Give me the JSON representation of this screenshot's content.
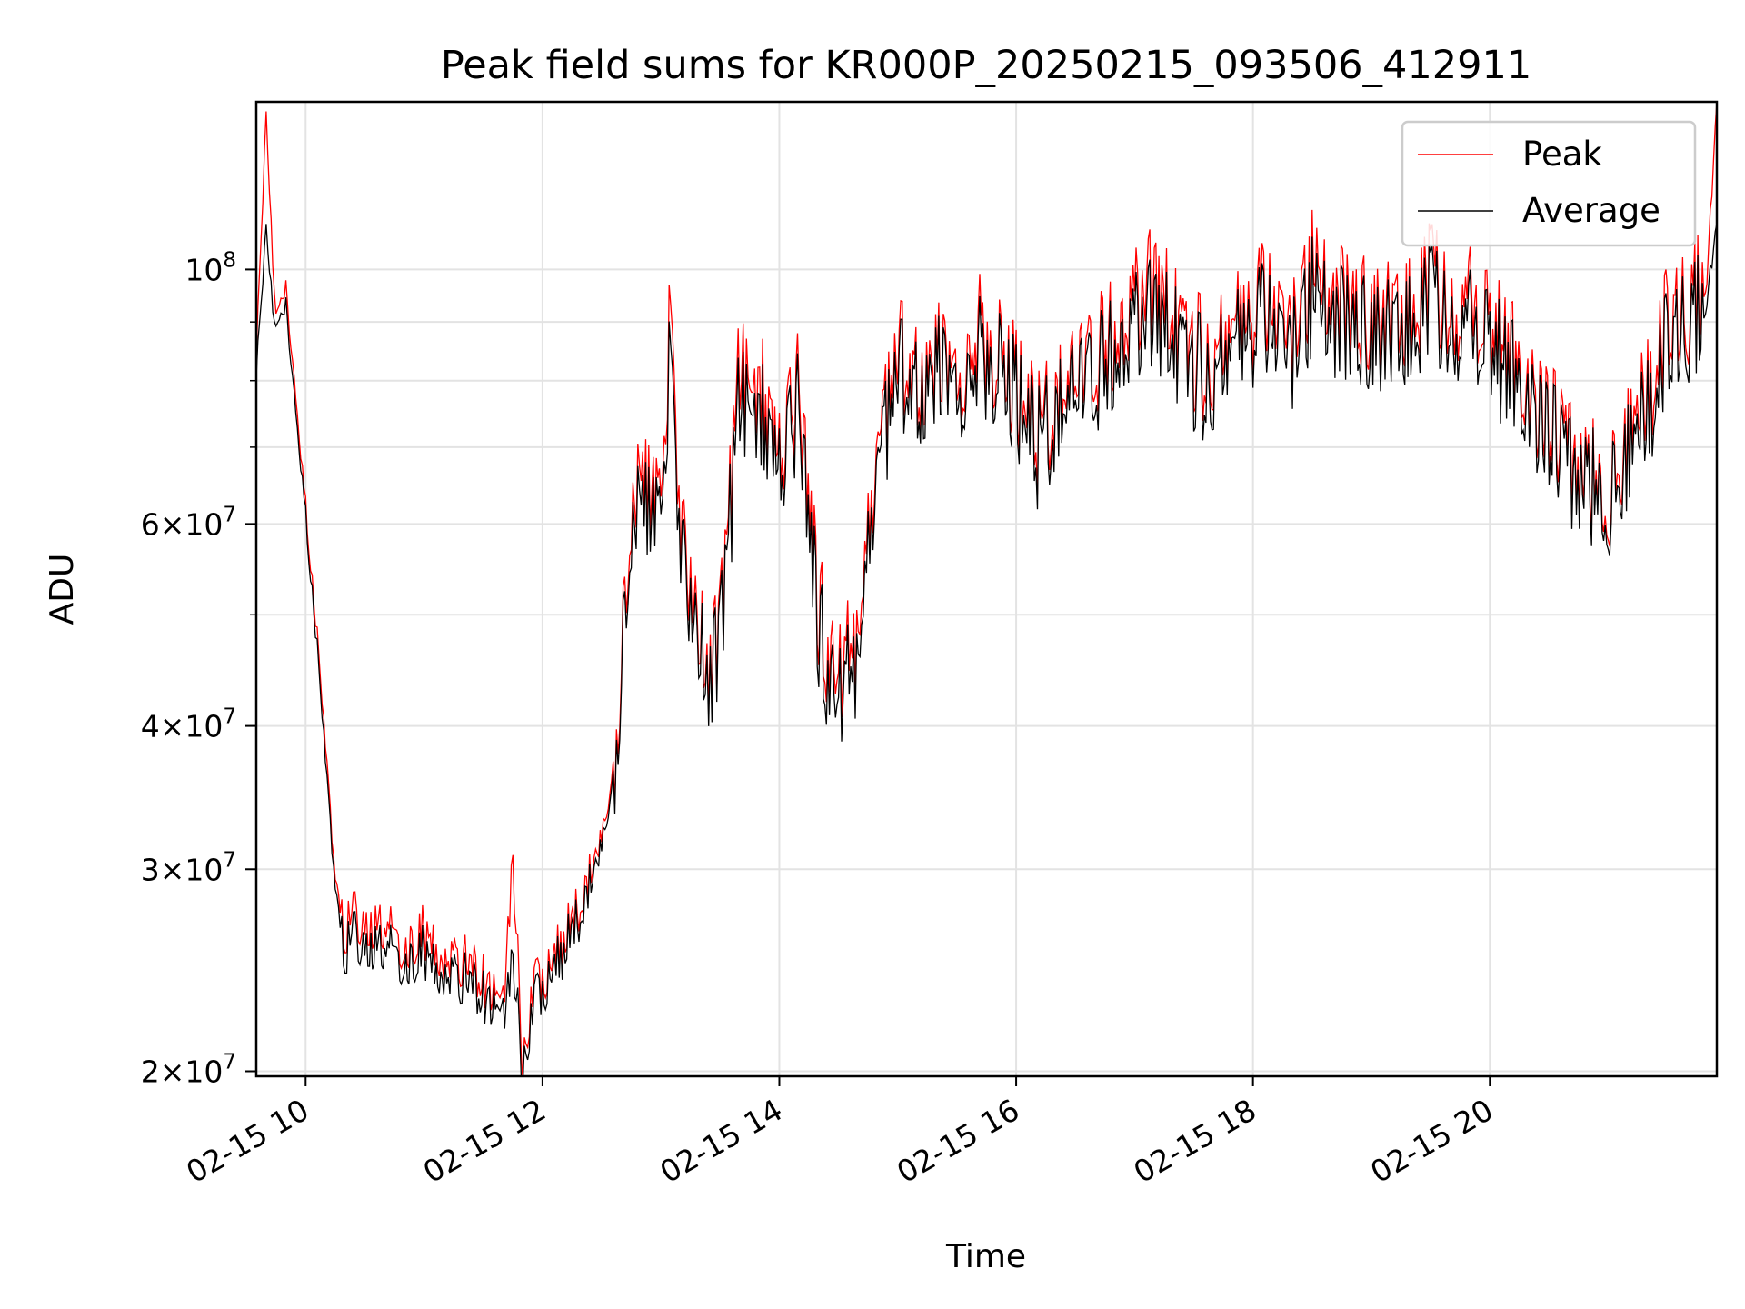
{
  "chart_data": {
    "type": "line",
    "title": "Peak field sums for KR000P_20250215_093506_412911",
    "xlabel": "Time",
    "ylabel": "ADU",
    "yscale": "log",
    "ylim": [
      19800000,
      140000000
    ],
    "xlim": [
      "02-15 09:35",
      "02-15 21:55"
    ],
    "grid": true,
    "legend_position": "top-right",
    "x_ticks": [
      "02-15 10",
      "02-15 12",
      "02-15 14",
      "02-15 16",
      "02-15 18",
      "02-15 20"
    ],
    "y_major_ticks": [
      {
        "mantissa": "",
        "exp": "8",
        "value": 100000000
      },
      {
        "mantissa": "6",
        "exp": "7",
        "value": 60000000
      },
      {
        "mantissa": "4",
        "exp": "7",
        "value": 40000000
      },
      {
        "mantissa": "3",
        "exp": "7",
        "value": 30000000
      },
      {
        "mantissa": "2",
        "exp": "7",
        "value": 20000000
      }
    ],
    "series": [
      {
        "name": "Peak",
        "color": "#ff0000"
      },
      {
        "name": "Average",
        "color": "#000000"
      }
    ],
    "x": [
      "02-15 09:35",
      "02-15 09:40",
      "02-15 09:45",
      "02-15 09:50",
      "02-15 09:55",
      "02-15 10:00",
      "02-15 10:05",
      "02-15 10:10",
      "02-15 10:15",
      "02-15 10:20",
      "02-15 10:25",
      "02-15 10:30",
      "02-15 10:40",
      "02-15 10:50",
      "02-15 11:00",
      "02-15 11:10",
      "02-15 11:20",
      "02-15 11:30",
      "02-15 11:40",
      "02-15 11:45",
      "02-15 11:50",
      "02-15 11:55",
      "02-15 12:00",
      "02-15 12:10",
      "02-15 12:20",
      "02-15 12:30",
      "02-15 12:35",
      "02-15 12:40",
      "02-15 12:45",
      "02-15 12:50",
      "02-15 13:00",
      "02-15 13:05",
      "02-15 13:10",
      "02-15 13:15",
      "02-15 13:20",
      "02-15 13:25",
      "02-15 13:30",
      "02-15 13:35",
      "02-15 13:40",
      "02-15 13:45",
      "02-15 13:50",
      "02-15 14:00",
      "02-15 14:10",
      "02-15 14:20",
      "02-15 14:30",
      "02-15 14:40",
      "02-15 14:45",
      "02-15 14:50",
      "02-15 15:00",
      "02-15 15:10",
      "02-15 15:20",
      "02-15 15:30",
      "02-15 15:40",
      "02-15 15:50",
      "02-15 16:00",
      "02-15 16:10",
      "02-15 16:20",
      "02-15 16:30",
      "02-15 16:40",
      "02-15 16:50",
      "02-15 17:00",
      "02-15 17:10",
      "02-15 17:20",
      "02-15 17:30",
      "02-15 17:40",
      "02-15 17:50",
      "02-15 18:00",
      "02-15 18:10",
      "02-15 18:20",
      "02-15 18:30",
      "02-15 18:40",
      "02-15 18:50",
      "02-15 19:00",
      "02-15 19:10",
      "02-15 19:20",
      "02-15 19:30",
      "02-15 19:40",
      "02-15 19:50",
      "02-15 20:00",
      "02-15 20:10",
      "02-15 20:20",
      "02-15 20:30",
      "02-15 20:40",
      "02-15 20:50",
      "02-15 21:00",
      "02-15 21:10",
      "02-15 21:20",
      "02-15 21:30",
      "02-15 21:40",
      "02-15 21:50",
      "02-15 21:55"
    ],
    "peak": [
      85000000,
      135000000,
      90000000,
      96000000,
      78000000,
      62000000,
      50000000,
      38000000,
      30000000,
      26500000,
      27500000,
      26000000,
      27000000,
      25500000,
      26500000,
      24500000,
      25000000,
      24000000,
      23000000,
      31000000,
      20000000,
      24000000,
      24000000,
      26000000,
      28000000,
      32000000,
      35000000,
      45000000,
      60000000,
      66000000,
      63000000,
      92000000,
      58000000,
      52000000,
      47000000,
      46000000,
      50000000,
      62000000,
      85000000,
      75000000,
      80000000,
      70000000,
      80000000,
      50000000,
      44000000,
      47000000,
      60000000,
      70000000,
      85000000,
      80000000,
      84000000,
      80000000,
      90000000,
      84000000,
      80000000,
      72000000,
      76000000,
      82000000,
      85000000,
      87000000,
      92000000,
      100000000,
      90000000,
      85000000,
      82000000,
      90000000,
      92000000,
      95000000,
      88000000,
      100000000,
      92000000,
      95000000,
      88000000,
      92000000,
      90000000,
      98000000,
      92000000,
      95000000,
      88000000,
      85000000,
      78000000,
      74000000,
      70000000,
      66000000,
      64000000,
      70000000,
      78000000,
      90000000,
      92000000,
      98000000,
      140000000
    ],
    "average": [
      82000000,
      108000000,
      88000000,
      93000000,
      76000000,
      61000000,
      49000000,
      37000000,
      29500000,
      25500000,
      26500000,
      25000000,
      26000000,
      24800000,
      25500000,
      23800000,
      24200000,
      23300000,
      22500000,
      25500000,
      19800000,
      23200000,
      23500000,
      25500000,
      27500000,
      31500000,
      34500000,
      44000000,
      58000000,
      63000000,
      61000000,
      85000000,
      56000000,
      50000000,
      46000000,
      45000000,
      49000000,
      60000000,
      80000000,
      72000000,
      76000000,
      68000000,
      77000000,
      48000000,
      42000000,
      45000000,
      58000000,
      68000000,
      82000000,
      78000000,
      82000000,
      78000000,
      86000000,
      82000000,
      78000000,
      70000000,
      74000000,
      80000000,
      82000000,
      84000000,
      88000000,
      94000000,
      87000000,
      82000000,
      79000000,
      87000000,
      89000000,
      91000000,
      85000000,
      95000000,
      89000000,
      91000000,
      85000000,
      89000000,
      87000000,
      94000000,
      89000000,
      91000000,
      85000000,
      82000000,
      76000000,
      72000000,
      68000000,
      65000000,
      63000000,
      68000000,
      75000000,
      86000000,
      89000000,
      94000000,
      110000000
    ]
  }
}
